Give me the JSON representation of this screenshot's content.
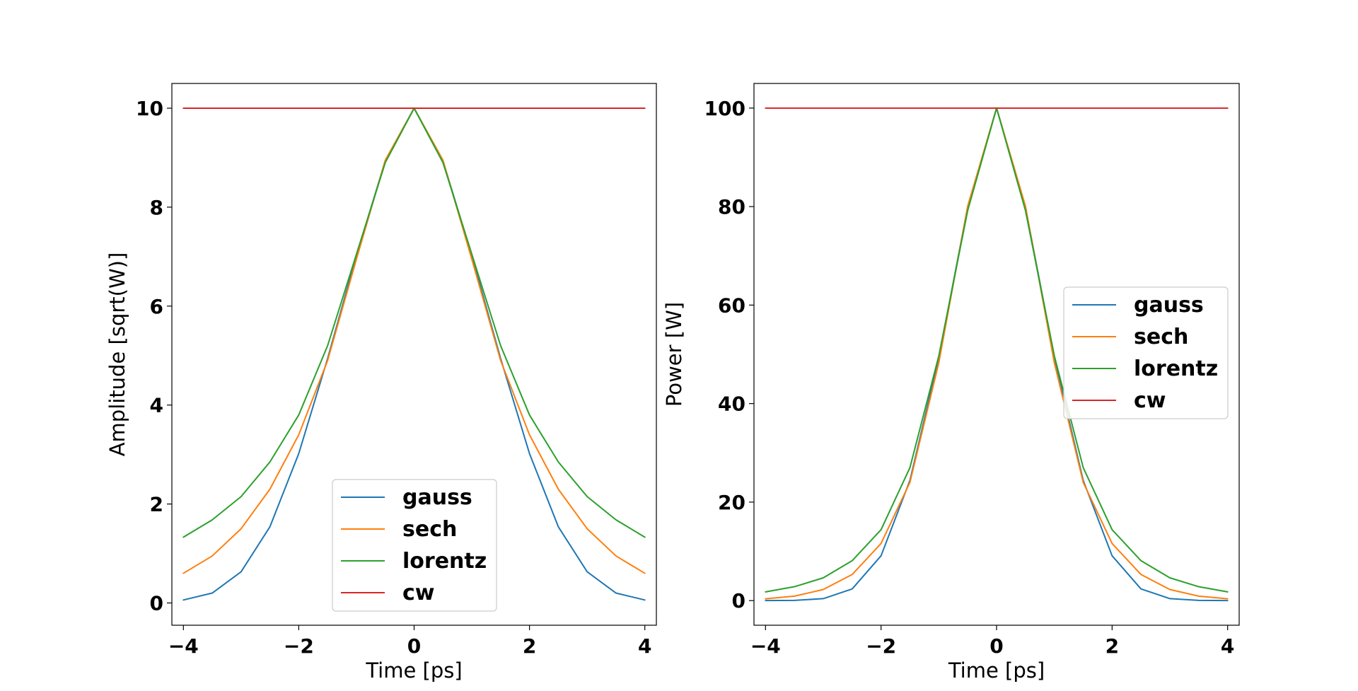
{
  "chart_data": [
    {
      "type": "line",
      "title": "",
      "xlabel": "Time [ps]",
      "ylabel": "Amplitude [sqrt(W)]",
      "xlim": [
        -4.2,
        4.2
      ],
      "ylim": [
        -0.45,
        10.5
      ],
      "xticks": [
        -4,
        -2,
        0,
        2,
        4
      ],
      "xtick_labels": [
        "−4",
        "−2",
        "0",
        "2",
        "4"
      ],
      "yticks": [
        0,
        2,
        4,
        6,
        8,
        10
      ],
      "ytick_labels": [
        "0",
        "2",
        "4",
        "6",
        "8",
        "10"
      ],
      "grid": false,
      "legend_location": "lower center",
      "x": [
        -4,
        -3.5,
        -3,
        -2.5,
        -2,
        -1.5,
        -1,
        -0.5,
        0,
        0.5,
        1,
        1.5,
        2,
        2.5,
        3,
        3.5,
        4
      ],
      "series": [
        {
          "name": "gauss",
          "color": "#1f77b4",
          "values": [
            0.06,
            0.2,
            0.63,
            1.54,
            3.02,
            4.94,
            7.02,
            8.94,
            10,
            8.94,
            7.02,
            4.94,
            3.02,
            1.54,
            0.63,
            0.2,
            0.06
          ]
        },
        {
          "name": "sech",
          "color": "#ff7f0e",
          "values": [
            0.6,
            0.95,
            1.5,
            2.3,
            3.4,
            4.9,
            6.95,
            8.95,
            10,
            8.95,
            6.95,
            4.9,
            3.4,
            2.3,
            1.5,
            0.95,
            0.6
          ]
        },
        {
          "name": "lorentz",
          "color": "#2ca02c",
          "values": [
            1.33,
            1.68,
            2.15,
            2.85,
            3.8,
            5.2,
            7.05,
            8.9,
            10,
            8.9,
            7.05,
            5.2,
            3.8,
            2.85,
            2.15,
            1.68,
            1.33
          ]
        },
        {
          "name": "cw",
          "color": "#d62728",
          "values": [
            10,
            10,
            10,
            10,
            10,
            10,
            10,
            10,
            10,
            10,
            10,
            10,
            10,
            10,
            10,
            10,
            10
          ]
        }
      ]
    },
    {
      "type": "line",
      "title": "",
      "xlabel": "Time [ps]",
      "ylabel": "Power [W]",
      "xlim": [
        -4.2,
        4.2
      ],
      "ylim": [
        -5,
        105
      ],
      "xticks": [
        -4,
        -2,
        0,
        2,
        4
      ],
      "xtick_labels": [
        "−4",
        "−2",
        "0",
        "2",
        "4"
      ],
      "yticks": [
        0,
        20,
        40,
        60,
        80,
        100
      ],
      "ytick_labels": [
        "0",
        "20",
        "40",
        "60",
        "80",
        "100"
      ],
      "grid": false,
      "legend_location": "center right",
      "x": [
        -4,
        -3.5,
        -3,
        -2.5,
        -2,
        -1.5,
        -1,
        -0.5,
        0,
        0.5,
        1,
        1.5,
        2,
        2.5,
        3,
        3.5,
        4
      ],
      "series": [
        {
          "name": "gauss",
          "color": "#1f77b4",
          "values": [
            0.0,
            0.04,
            0.4,
            2.37,
            9.1,
            24.4,
            49.3,
            79.9,
            100,
            79.9,
            49.3,
            24.4,
            9.1,
            2.37,
            0.4,
            0.04,
            0.0
          ]
        },
        {
          "name": "sech",
          "color": "#ff7f0e",
          "values": [
            0.36,
            0.9,
            2.25,
            5.3,
            11.6,
            24.0,
            48.3,
            80.1,
            100,
            80.1,
            48.3,
            24.0,
            11.6,
            5.3,
            2.25,
            0.9,
            0.36
          ]
        },
        {
          "name": "lorentz",
          "color": "#2ca02c",
          "values": [
            1.77,
            2.82,
            4.62,
            8.1,
            14.4,
            27.0,
            49.7,
            79.2,
            100,
            79.2,
            49.7,
            27.0,
            14.4,
            8.1,
            4.62,
            2.82,
            1.77
          ]
        },
        {
          "name": "cw",
          "color": "#d62728",
          "values": [
            100,
            100,
            100,
            100,
            100,
            100,
            100,
            100,
            100,
            100,
            100,
            100,
            100,
            100,
            100,
            100,
            100
          ]
        }
      ]
    }
  ]
}
